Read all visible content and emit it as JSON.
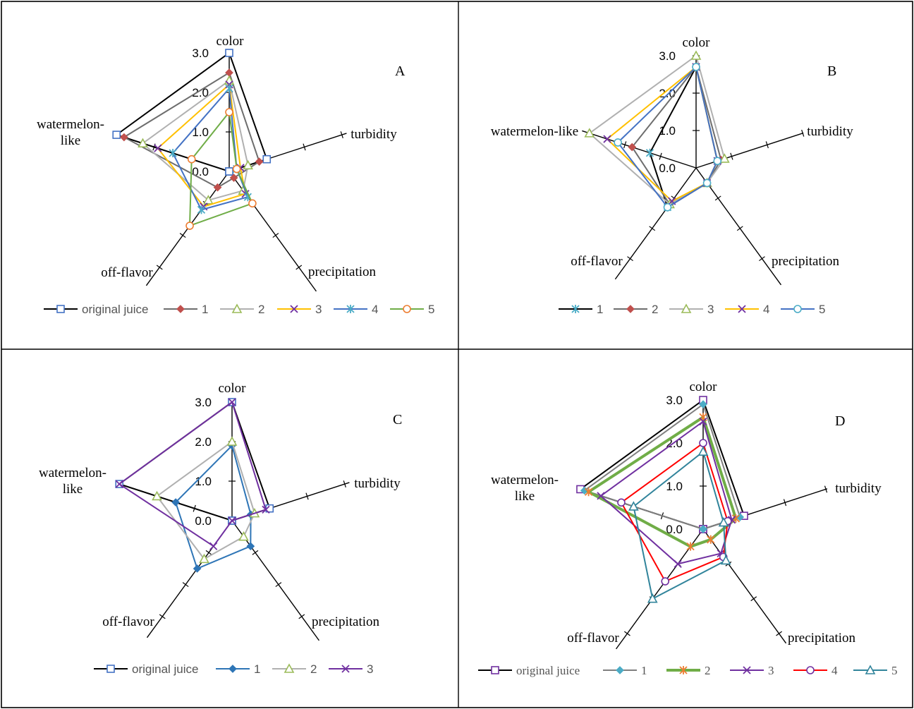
{
  "chart_data": [
    {
      "panel": "A",
      "type": "radar",
      "axes": [
        "color",
        "turbidity",
        "precipitation",
        "off-flavor",
        "watermelon-like"
      ],
      "axis_label_lines": [
        [
          "color"
        ],
        [
          "turbidity"
        ],
        [
          "precipitation"
        ],
        [
          "off-flavor"
        ],
        [
          "watermelon-",
          "like"
        ]
      ],
      "tick_labels": [
        "0.0",
        "1.0",
        "2.0",
        "3.0"
      ],
      "range": [
        0,
        3
      ],
      "label_font": "serif",
      "tick_font": "sans",
      "legend_font": "sans",
      "series": [
        {
          "name": "original juice",
          "values": [
            3.0,
            1.0,
            0.0,
            0.0,
            3.0
          ],
          "color": "#000000",
          "marker": "square",
          "marker_color": "#4472c4"
        },
        {
          "name": "1",
          "values": [
            2.5,
            0.8,
            0.2,
            0.5,
            2.8
          ],
          "color": "#6d6d6d",
          "marker": "diamond",
          "marker_color": "#c0504d"
        },
        {
          "name": "2",
          "values": [
            2.3,
            0.5,
            0.6,
            0.9,
            2.3
          ],
          "color": "#b0b0b0",
          "marker": "triangle",
          "marker_color": "#9bbb59"
        },
        {
          "name": "3",
          "values": [
            2.2,
            0.3,
            0.7,
            1.1,
            1.9
          ],
          "color": "#ffc000",
          "marker": "x",
          "marker_color": "#7030a0"
        },
        {
          "name": "4",
          "values": [
            2.1,
            0.2,
            0.8,
            1.2,
            1.5
          ],
          "color": "#4472c4",
          "marker": "star",
          "marker_color": "#4bacc6"
        },
        {
          "name": "5",
          "values": [
            1.5,
            0.2,
            1.0,
            1.7,
            1.0
          ],
          "color": "#70ad47",
          "marker": "circle",
          "marker_color": "#ed7d31"
        }
      ],
      "grid": false,
      "legend_position": "bottom"
    },
    {
      "panel": "B",
      "type": "radar",
      "axes": [
        "color",
        "turbidity",
        "precipitation",
        "off-flavor",
        "watermelon-like"
      ],
      "axis_label_lines": [
        [
          "color"
        ],
        [
          "turbidity"
        ],
        [
          "precipitation"
        ],
        [
          "off-flavor"
        ],
        [
          "watermelon-like"
        ]
      ],
      "tick_labels": [
        "0.0",
        "1.0",
        "2.0",
        "3.0"
      ],
      "range": [
        0,
        3
      ],
      "label_font": "serif",
      "tick_font": "sans",
      "legend_font": "sans",
      "series": [
        {
          "name": "1",
          "values": [
            2.7,
            0.6,
            0.5,
            1.3,
            1.3
          ],
          "color": "#000000",
          "marker": "star",
          "marker_color": "#4bacc6"
        },
        {
          "name": "2",
          "values": [
            2.7,
            0.7,
            0.5,
            1.2,
            1.8
          ],
          "color": "#6d6d6d",
          "marker": "diamond",
          "marker_color": "#c0504d"
        },
        {
          "name": "3",
          "values": [
            3.0,
            0.8,
            0.5,
            1.2,
            3.0
          ],
          "color": "#b0b0b0",
          "marker": "triangle",
          "marker_color": "#9bbb59"
        },
        {
          "name": "4",
          "values": [
            2.7,
            0.6,
            0.5,
            1.1,
            2.5
          ],
          "color": "#ffc000",
          "marker": "x",
          "marker_color": "#7030a0"
        },
        {
          "name": "5",
          "values": [
            2.7,
            0.6,
            0.5,
            1.3,
            2.2
          ],
          "color": "#4472c4",
          "marker": "circle",
          "marker_color": "#4bacc6"
        }
      ],
      "grid": false,
      "legend_position": "bottom"
    },
    {
      "panel": "C",
      "type": "radar",
      "axes": [
        "color",
        "turbidity",
        "precipitation",
        "off-flavor",
        "watermelon-like"
      ],
      "axis_label_lines": [
        [
          "color"
        ],
        [
          "turbidity"
        ],
        [
          "precipitation"
        ],
        [
          "off-flavor"
        ],
        [
          "watermelon-",
          "like"
        ]
      ],
      "tick_labels": [
        "0.0",
        "1.0",
        "2.0",
        "3.0"
      ],
      "range": [
        0,
        3
      ],
      "label_font": "serif",
      "tick_font": "sans",
      "legend_font": "sans",
      "series": [
        {
          "name": "original juice",
          "values": [
            3.0,
            1.0,
            0.0,
            0.0,
            3.0
          ],
          "color": "#000000",
          "marker": "square",
          "marker_color": "#4472c4"
        },
        {
          "name": "1",
          "values": [
            1.9,
            0.5,
            0.8,
            1.5,
            1.5
          ],
          "color": "#2e75b6",
          "marker": "diamond",
          "marker_color": "#2e75b6"
        },
        {
          "name": "2",
          "values": [
            2.0,
            0.6,
            0.5,
            1.2,
            2.0
          ],
          "color": "#b0b0b0",
          "marker": "triangle",
          "marker_color": "#9bbb59"
        },
        {
          "name": "3",
          "values": [
            3.0,
            0.9,
            0.0,
            0.8,
            3.0
          ],
          "color": "#7030a0",
          "marker": "x",
          "marker_color": "#7030a0"
        }
      ],
      "grid": false,
      "legend_position": "bottom"
    },
    {
      "panel": "D",
      "type": "radar",
      "axes": [
        "color",
        "turbidity",
        "precipitation",
        "off-flavor",
        "watermelon-like"
      ],
      "axis_label_lines": [
        [
          "color"
        ],
        [
          "turbidity"
        ],
        [
          "precipitation"
        ],
        [
          "off-flavor"
        ],
        [
          "watermelon-",
          "like"
        ]
      ],
      "tick_labels": [
        "0.0",
        "1.0",
        "2.0",
        "3.0"
      ],
      "range": [
        0,
        3
      ],
      "label_font": "serif",
      "tick_font": "sans",
      "legend_font": "serif",
      "series": [
        {
          "name": "original juice",
          "values": [
            3.0,
            1.0,
            0.0,
            0.0,
            3.0
          ],
          "color": "#000000",
          "marker": "square",
          "marker_color": "#7030a0"
        },
        {
          "name": "1",
          "values": [
            2.9,
            0.9,
            0.0,
            0.0,
            2.9
          ],
          "color": "#7f7f7f",
          "marker": "diamond",
          "marker_color": "#4bacc6"
        },
        {
          "name": "2",
          "values": [
            2.6,
            0.8,
            0.3,
            0.5,
            2.8
          ],
          "color": "#70ad47",
          "marker": "star",
          "marker_color": "#ed7d31",
          "thick": true
        },
        {
          "name": "3",
          "values": [
            2.5,
            0.7,
            0.7,
            1.0,
            2.5
          ],
          "color": "#7030a0",
          "marker": "x",
          "marker_color": "#7030a0"
        },
        {
          "name": "4",
          "values": [
            2.0,
            0.6,
            0.8,
            1.5,
            2.0
          ],
          "color": "#ff0000",
          "marker": "circle",
          "marker_color": "#7030a0"
        },
        {
          "name": "5",
          "values": [
            1.8,
            0.5,
            0.9,
            2.0,
            1.7
          ],
          "color": "#31849b",
          "marker": "triangle",
          "marker_color": "#31849b"
        }
      ],
      "grid": false,
      "legend_position": "bottom"
    }
  ],
  "panel_letters": {
    "A": "A",
    "B": "B",
    "C": "C",
    "D": "D"
  }
}
